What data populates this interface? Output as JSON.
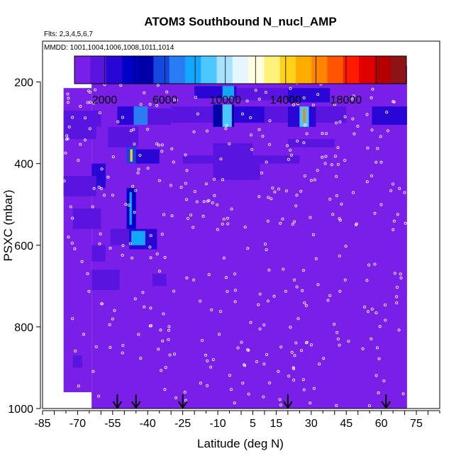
{
  "chart_data": {
    "type": "heatmap",
    "title": "ATOM3 Southbound N_nucl_AMP",
    "subtitle_flights": "Flts: 2,3,4,5,6,7",
    "subtitle_dates": "MMDD: 1001,1004,1006,1008,1011,1014",
    "xlabel": "Latitude (deg N)",
    "ylabel": "PSXC (mbar)",
    "xlim": [
      -85,
      85
    ],
    "ylim": [
      1000,
      100
    ],
    "x_ticks": [
      "-85",
      "-70",
      "-55",
      "-40",
      "-25",
      "-10",
      "5",
      "15",
      "30",
      "45",
      "60",
      "75"
    ],
    "x_tick_values": [
      -85,
      -70,
      -55,
      -40,
      -25,
      -10,
      5,
      15,
      30,
      45,
      60,
      75
    ],
    "y_ticks": [
      "200",
      "400",
      "600",
      "800",
      "1000"
    ],
    "y_tick_values": [
      200,
      400,
      600,
      800,
      1000
    ],
    "colorbar": {
      "min": 0,
      "max": 22000,
      "tick_labels": [
        "2000",
        "6000",
        "10000",
        "14000",
        "18000"
      ],
      "tick_values": [
        2000,
        6000,
        10000,
        14000,
        18000
      ],
      "colors": [
        "#7a1fe8",
        "#5a14e0",
        "#2a06d6",
        "#0000c8",
        "#0000a8",
        "#1248e0",
        "#2a7cf4",
        "#12a6ff",
        "#4cc6ff",
        "#a8e2ff",
        "#e4f6ff",
        "#fffce0",
        "#fff27a",
        "#ffd21a",
        "#ffab00",
        "#ff8400",
        "#ff5400",
        "#ff1a00",
        "#e00000",
        "#b40000",
        "#8c1414"
      ]
    },
    "background_value": 700,
    "coverage": [
      {
        "lat": [
          -76,
          -64
        ],
        "p": [
          215,
          960
        ]
      },
      {
        "lat": [
          -64,
          71
        ],
        "p": [
          160,
          1000
        ]
      }
    ],
    "cells": [
      {
        "lat": [
          -20,
          -2
        ],
        "p": [
          210,
          240
        ],
        "value": 3000
      },
      {
        "lat": [
          -8,
          -3
        ],
        "p": [
          210,
          240
        ],
        "value": 8000
      },
      {
        "lat": [
          -2,
          20
        ],
        "p": [
          215,
          245
        ],
        "value": 1800
      },
      {
        "lat": [
          20,
          38
        ],
        "p": [
          215,
          250
        ],
        "value": 2600
      },
      {
        "lat": [
          -76,
          -60
        ],
        "p": [
          270,
          310
        ],
        "value": 1600
      },
      {
        "lat": [
          -53,
          -43
        ],
        "p": [
          260,
          305
        ],
        "value": 2400
      },
      {
        "lat": [
          -46,
          -40
        ],
        "p": [
          260,
          305
        ],
        "value": 7000
      },
      {
        "lat": [
          -40,
          -30
        ],
        "p": [
          265,
          305
        ],
        "value": 1600
      },
      {
        "lat": [
          -30,
          -12
        ],
        "p": [
          260,
          300
        ],
        "value": 1800
      },
      {
        "lat": [
          -12,
          -3
        ],
        "p": [
          255,
          310
        ],
        "value": 4200
      },
      {
        "lat": [
          -8,
          -4
        ],
        "p": [
          255,
          310
        ],
        "value": 9000
      },
      {
        "lat": [
          -3,
          10
        ],
        "p": [
          260,
          300
        ],
        "value": 2200
      },
      {
        "lat": [
          10,
          20
        ],
        "p": [
          260,
          300
        ],
        "value": 1500
      },
      {
        "lat": [
          20,
          32
        ],
        "p": [
          260,
          310
        ],
        "value": 3000
      },
      {
        "lat": [
          25,
          29
        ],
        "p": [
          260,
          310
        ],
        "value": 8500
      },
      {
        "lat": [
          26.5,
          27.5
        ],
        "p": [
          265,
          300
        ],
        "value": 16000
      },
      {
        "lat": [
          32,
          45
        ],
        "p": [
          260,
          300
        ],
        "value": 1800
      },
      {
        "lat": [
          56,
          71
        ],
        "p": [
          260,
          305
        ],
        "value": 2400
      },
      {
        "lat": [
          -76,
          -62
        ],
        "p": [
          310,
          340
        ],
        "value": 1400
      },
      {
        "lat": [
          -57,
          -44
        ],
        "p": [
          310,
          360
        ],
        "value": 1300
      },
      {
        "lat": [
          -49,
          -45
        ],
        "p": [
          360,
          400
        ],
        "value": 6000
      },
      {
        "lat": [
          -47.5,
          -46.5
        ],
        "p": [
          365,
          395
        ],
        "value": 14000
      },
      {
        "lat": [
          -45,
          -35
        ],
        "p": [
          365,
          400
        ],
        "value": 2400
      },
      {
        "lat": [
          -12,
          5
        ],
        "p": [
          350,
          400
        ],
        "value": 1800
      },
      {
        "lat": [
          -25,
          -12
        ],
        "p": [
          380,
          400
        ],
        "value": 1200
      },
      {
        "lat": [
          5,
          25
        ],
        "p": [
          380,
          400
        ],
        "value": 1300
      },
      {
        "lat": [
          20,
          40
        ],
        "p": [
          340,
          360
        ],
        "value": 1500
      },
      {
        "lat": [
          -64,
          -58
        ],
        "p": [
          400,
          460
        ],
        "value": 2400
      },
      {
        "lat": [
          -12,
          8
        ],
        "p": [
          400,
          440
        ],
        "value": 1700
      },
      {
        "lat": [
          -76,
          -62
        ],
        "p": [
          430,
          480
        ],
        "value": 1500
      },
      {
        "lat": [
          -49,
          -45
        ],
        "p": [
          460,
          560
        ],
        "value": 3400
      },
      {
        "lat": [
          -47.8,
          -46.8
        ],
        "p": [
          470,
          550
        ],
        "value": 8000
      },
      {
        "lat": [
          -72,
          -60
        ],
        "p": [
          510,
          560
        ],
        "value": 1800
      },
      {
        "lat": [
          -48,
          -36
        ],
        "p": [
          560,
          610
        ],
        "value": 2800
      },
      {
        "lat": [
          -47,
          -41
        ],
        "p": [
          565,
          600
        ],
        "value": 7600
      },
      {
        "lat": [
          -56,
          -48
        ],
        "p": [
          560,
          600
        ],
        "value": 1600
      },
      {
        "lat": [
          -64,
          -58
        ],
        "p": [
          600,
          640
        ],
        "value": 1800
      },
      {
        "lat": [
          -64,
          -52
        ],
        "p": [
          660,
          710
        ],
        "value": 1600
      },
      {
        "lat": [
          -38,
          -32
        ],
        "p": [
          670,
          700
        ],
        "value": 1400
      },
      {
        "lat": [
          -72,
          -68
        ],
        "p": [
          870,
          900
        ],
        "value": 1600
      }
    ],
    "markers_latitude": [
      -53,
      -45,
      -25,
      20,
      62
    ]
  }
}
